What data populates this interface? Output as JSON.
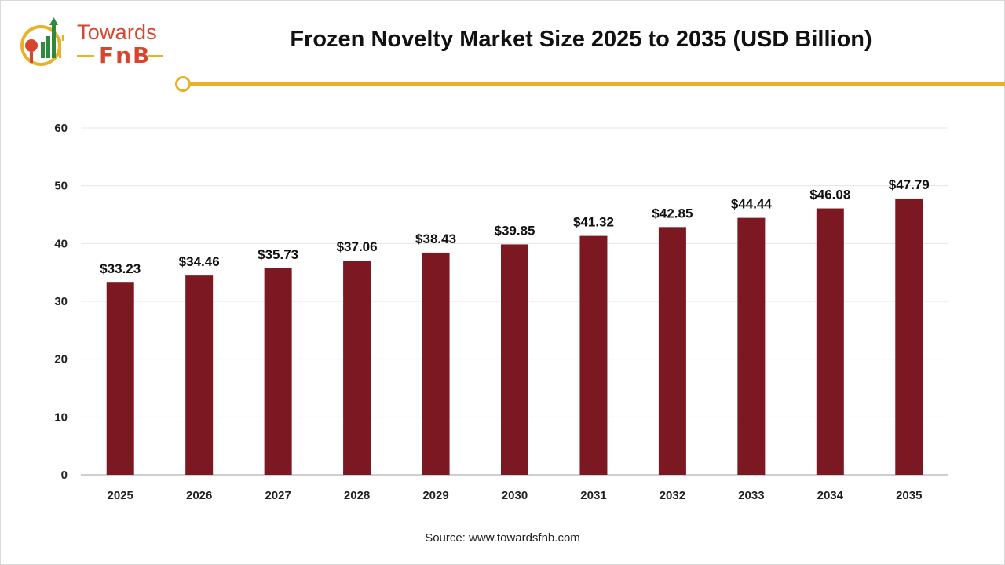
{
  "brand": {
    "line1": "Towards",
    "line2": "FnB"
  },
  "title": "Frozen Novelty Market Size 2025 to 2035 (USD Billion)",
  "source": "Source: www.towardsfnb.com",
  "colors": {
    "bar": "#7b1822",
    "accent": "#e9b128",
    "grid": "#e6e6e6",
    "axis": "#bfbfbf"
  },
  "chart_data": {
    "type": "bar",
    "title": "Frozen Novelty Market Size 2025 to 2035 (USD Billion)",
    "categories": [
      "2025",
      "2026",
      "2027",
      "2028",
      "2029",
      "2030",
      "2031",
      "2032",
      "2033",
      "2034",
      "2035"
    ],
    "values": [
      33.23,
      34.46,
      35.73,
      37.06,
      38.43,
      39.85,
      41.32,
      42.85,
      44.44,
      46.08,
      47.79
    ],
    "value_labels": [
      "$33.23",
      "$34.46",
      "$35.73",
      "$37.06",
      "$38.43",
      "$39.85",
      "$41.32",
      "$42.85",
      "$44.44",
      "$46.08",
      "$47.79"
    ],
    "yticks": [
      "0",
      "10",
      "20",
      "30",
      "40",
      "50",
      "60"
    ],
    "ylim": [
      0,
      60
    ],
    "xlabel": "",
    "ylabel": "",
    "grid": true,
    "legend": "none"
  }
}
